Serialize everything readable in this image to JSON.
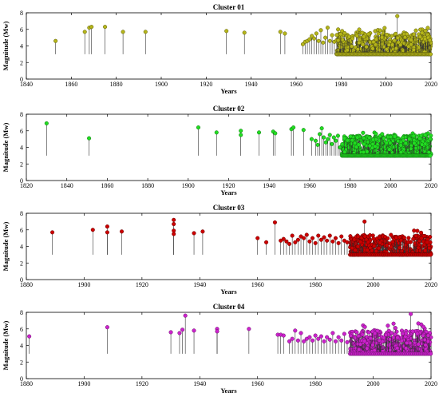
{
  "chart_data": [
    {
      "type": "stem",
      "title": "Cluster 01",
      "xlabel": "Years",
      "ylabel": "Magnitude (Mw)",
      "xlim": [
        1840,
        2020
      ],
      "ylim": [
        0,
        8
      ],
      "xticks": [
        1840,
        1860,
        1880,
        1900,
        1920,
        1940,
        1960,
        1980,
        2000,
        2020
      ],
      "yticks": [
        0,
        2,
        4,
        6,
        8
      ],
      "baseline": 3.0,
      "color": "#b5b51a",
      "points": [
        [
          1853,
          4.6
        ],
        [
          1866,
          5.7
        ],
        [
          1868,
          6.2
        ],
        [
          1869,
          6.3
        ],
        [
          1875,
          6.3
        ],
        [
          1883,
          5.7
        ],
        [
          1893,
          5.7
        ],
        [
          1929,
          5.8
        ],
        [
          1937,
          5.6
        ],
        [
          1953,
          5.7
        ],
        [
          1955,
          5.5
        ],
        [
          1963,
          4.2
        ],
        [
          1964,
          4.5
        ],
        [
          1965,
          4.6
        ],
        [
          1966,
          4.8
        ],
        [
          1967,
          5.2
        ],
        [
          1968,
          4.9
        ],
        [
          1969,
          5.5
        ],
        [
          1970,
          4.6
        ],
        [
          1971,
          5.9
        ],
        [
          1972,
          4.4
        ],
        [
          1973,
          5.0
        ],
        [
          1974,
          6.2
        ],
        [
          1975,
          4.6
        ],
        [
          1976,
          5.3
        ],
        [
          1977,
          4.5
        ],
        [
          2005,
          7.6
        ]
      ],
      "dense_region": {
        "from": 1978,
        "to": 2020,
        "min": 3.0,
        "max": 5.6,
        "peak": 6.2
      }
    },
    {
      "type": "stem",
      "title": "Cluster 02",
      "xlabel": "Years",
      "ylabel": "Magnitude (Mw)",
      "xlim": [
        1820,
        2020
      ],
      "ylim": [
        0,
        8
      ],
      "xticks": [
        1820,
        1840,
        1860,
        1880,
        1900,
        1920,
        1940,
        1960,
        1980,
        2000,
        2020
      ],
      "yticks": [
        0,
        2,
        4,
        6,
        8
      ],
      "baseline": 3.0,
      "color": "#22dd22",
      "points": [
        [
          1830,
          6.9
        ],
        [
          1851,
          5.1
        ],
        [
          1905,
          6.4
        ],
        [
          1914,
          5.8
        ],
        [
          1926,
          6.0
        ],
        [
          1926,
          5.5
        ],
        [
          1935,
          5.8
        ],
        [
          1942,
          5.9
        ],
        [
          1943,
          5.7
        ],
        [
          1951,
          6.2
        ],
        [
          1952,
          6.4
        ],
        [
          1957,
          6.1
        ],
        [
          1961,
          5.0
        ],
        [
          1963,
          4.8
        ],
        [
          1964,
          4.3
        ],
        [
          1965,
          5.6
        ],
        [
          1966,
          6.3
        ],
        [
          1967,
          5.2
        ],
        [
          1968,
          4.6
        ],
        [
          1969,
          5.0
        ],
        [
          1970,
          5.5
        ],
        [
          1971,
          4.4
        ],
        [
          1972,
          5.2
        ],
        [
          1973,
          4.8
        ],
        [
          1974,
          5.4
        ],
        [
          1975,
          4.0
        ]
      ],
      "dense_region": {
        "from": 1976,
        "to": 2020,
        "min": 3.0,
        "max": 5.4,
        "peak": 5.8
      }
    },
    {
      "type": "stem",
      "title": "Cluster 03",
      "xlabel": "Years",
      "ylabel": "Magnitude (Mw)",
      "xlim": [
        1880,
        2020
      ],
      "ylim": [
        0,
        8
      ],
      "xticks": [
        1880,
        1900,
        1920,
        1940,
        1960,
        1980,
        2000,
        2020
      ],
      "yticks": [
        0,
        2,
        4,
        6,
        8
      ],
      "baseline": 3.0,
      "color": "#cc0000",
      "points": [
        [
          1889,
          5.7
        ],
        [
          1903,
          6.0
        ],
        [
          1908,
          6.4
        ],
        [
          1908,
          5.7
        ],
        [
          1913,
          5.8
        ],
        [
          1931,
          7.2
        ],
        [
          1931,
          6.7
        ],
        [
          1931,
          5.9
        ],
        [
          1931,
          5.5
        ],
        [
          1938,
          5.6
        ],
        [
          1941,
          5.8
        ],
        [
          1960,
          5.0
        ],
        [
          1963,
          4.5
        ],
        [
          1966,
          6.9
        ],
        [
          1968,
          4.7
        ],
        [
          1969,
          4.9
        ],
        [
          1970,
          4.6
        ],
        [
          1971,
          4.3
        ],
        [
          1972,
          5.3
        ],
        [
          1973,
          4.5
        ],
        [
          1974,
          4.8
        ],
        [
          1975,
          5.2
        ],
        [
          1976,
          5.0
        ],
        [
          1977,
          5.4
        ],
        [
          1978,
          4.6
        ],
        [
          1979,
          5.0
        ],
        [
          1980,
          4.4
        ],
        [
          1981,
          5.3
        ],
        [
          1982,
          4.8
        ],
        [
          1983,
          5.1
        ],
        [
          1984,
          4.7
        ],
        [
          1985,
          5.3
        ],
        [
          1986,
          4.6
        ],
        [
          1987,
          5.0
        ],
        [
          1988,
          4.4
        ],
        [
          1989,
          5.2
        ],
        [
          1990,
          4.7
        ],
        [
          1991,
          4.5
        ],
        [
          1997,
          7.0
        ]
      ],
      "dense_region": {
        "from": 1992,
        "to": 2020,
        "min": 3.0,
        "max": 5.4,
        "peak": 6.4
      }
    },
    {
      "type": "stem",
      "title": "Cluster 04",
      "xlabel": "Years",
      "ylabel": "Magnitude (Mw)",
      "xlim": [
        1880,
        2020
      ],
      "ylim": [
        0,
        8
      ],
      "xticks": [
        1880,
        1900,
        1920,
        1940,
        1960,
        1980,
        2000,
        2020
      ],
      "yticks": [
        0,
        2,
        4,
        6,
        8
      ],
      "baseline": 3.0,
      "color": "#cc22cc",
      "points": [
        [
          1881,
          5.1
        ],
        [
          1908,
          6.2
        ],
        [
          1930,
          5.6
        ],
        [
          1933,
          5.5
        ],
        [
          1934,
          5.9
        ],
        [
          1935,
          7.6
        ],
        [
          1938,
          5.8
        ],
        [
          1946,
          6.0
        ],
        [
          1946,
          5.7
        ],
        [
          1957,
          6.0
        ],
        [
          1967,
          5.3
        ],
        [
          1968,
          5.3
        ],
        [
          1969,
          5.2
        ],
        [
          1971,
          4.5
        ],
        [
          1972,
          4.8
        ],
        [
          1973,
          5.8
        ],
        [
          1974,
          4.6
        ],
        [
          1975,
          5.5
        ],
        [
          1976,
          4.5
        ],
        [
          1977,
          4.8
        ],
        [
          1978,
          5.0
        ],
        [
          1979,
          4.6
        ],
        [
          1980,
          5.2
        ],
        [
          1981,
          4.8
        ],
        [
          1982,
          5.1
        ],
        [
          1983,
          4.5
        ],
        [
          1984,
          5.0
        ],
        [
          1985,
          4.7
        ],
        [
          1986,
          5.5
        ],
        [
          1987,
          4.5
        ],
        [
          1988,
          5.0
        ],
        [
          1989,
          4.6
        ],
        [
          1990,
          5.4
        ],
        [
          1991,
          4.4
        ],
        [
          2013,
          7.8
        ]
      ],
      "dense_region": {
        "from": 1992,
        "to": 2020,
        "min": 3.2,
        "max": 5.8,
        "peak": 6.8
      }
    }
  ]
}
